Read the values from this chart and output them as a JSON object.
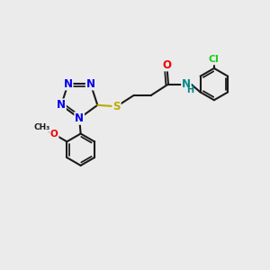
{
  "bg_color": "#ebebeb",
  "bond_color": "#1a1a1a",
  "bond_width": 1.5,
  "atom_colors": {
    "N": "#0000ee",
    "O": "#ee0000",
    "S": "#bbaa00",
    "Cl": "#22cc22",
    "C": "#1a1a1a",
    "H": "#1a1a1a",
    "NH": "#008888"
  },
  "font_size": 8.5,
  "fig_size": [
    3.0,
    3.0
  ],
  "dpi": 100
}
